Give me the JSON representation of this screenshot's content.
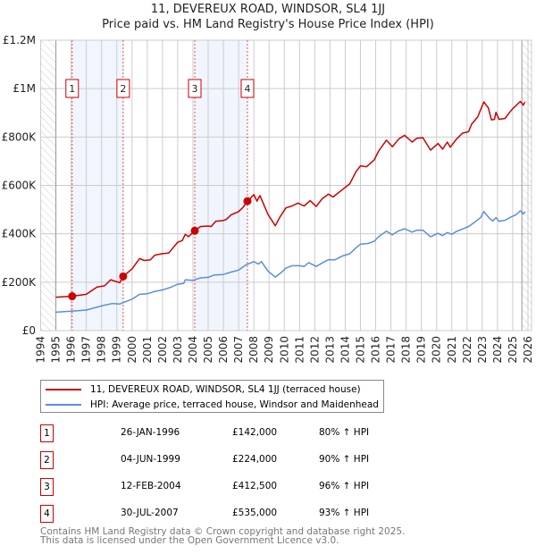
{
  "chart_data": {
    "type": "line",
    "title": "11, DEVEREUX ROAD, WINDSOR, SL4 1JJ",
    "subtitle": "Price paid vs. HM Land Registry's House Price Index (HPI)",
    "xlim": [
      1994,
      2026
    ],
    "ylim": [
      0,
      1200000
    ],
    "x_ticks": [
      "1994",
      "1995",
      "1996",
      "1997",
      "1998",
      "1999",
      "2000",
      "2001",
      "2002",
      "2003",
      "2004",
      "2005",
      "2006",
      "2007",
      "2008",
      "2009",
      "2010",
      "2011",
      "2012",
      "2013",
      "2014",
      "2015",
      "2016",
      "2017",
      "2018",
      "2019",
      "2020",
      "2021",
      "2022",
      "2023",
      "2024",
      "2025",
      "2026"
    ],
    "y_ticks": [
      {
        "v": 0,
        "label": "£0"
      },
      {
        "v": 200000,
        "label": "£200K"
      },
      {
        "v": 400000,
        "label": "£400K"
      },
      {
        "v": 600000,
        "label": "£600K"
      },
      {
        "v": 800000,
        "label": "£800K"
      },
      {
        "v": 1000000,
        "label": "£1M"
      },
      {
        "v": 1200000,
        "label": "£1.2M"
      }
    ],
    "grid": true,
    "data_range": [
      1995.0,
      2025.6
    ],
    "shaded_periods": [
      [
        1996.07,
        1999.42
      ],
      [
        2004.12,
        2007.58
      ]
    ],
    "series": [
      {
        "name": "11, DEVEREUX ROAD, WINDSOR, SL4 1JJ (terraced house)",
        "color": "#cc0000",
        "points": [
          [
            1995.0,
            138000
          ],
          [
            1996.07,
            142000
          ],
          [
            1997,
            150000
          ],
          [
            1997.7,
            180000
          ],
          [
            1998.2,
            185000
          ],
          [
            1998.6,
            210000
          ],
          [
            1999.2,
            198000
          ],
          [
            1999.42,
            224000
          ],
          [
            2000,
            255000
          ],
          [
            2000.5,
            298000
          ],
          [
            2000.8,
            290000
          ],
          [
            2001.2,
            292000
          ],
          [
            2001.5,
            312000
          ],
          [
            2002,
            318000
          ],
          [
            2002.4,
            320000
          ],
          [
            2003,
            365000
          ],
          [
            2003.3,
            372000
          ],
          [
            2003.5,
            398000
          ],
          [
            2003.7,
            388000
          ],
          [
            2004.12,
            412500
          ],
          [
            2004.5,
            430000
          ],
          [
            2005,
            432000
          ],
          [
            2005.2,
            430000
          ],
          [
            2005.5,
            452000
          ],
          [
            2006,
            455000
          ],
          [
            2006.2,
            460000
          ],
          [
            2006.5,
            478000
          ],
          [
            2007,
            492000
          ],
          [
            2007.3,
            510000
          ],
          [
            2007.58,
            535000
          ],
          [
            2008,
            562000
          ],
          [
            2008.2,
            535000
          ],
          [
            2008.4,
            558000
          ],
          [
            2008.93,
            480000
          ],
          [
            2009.41,
            433000
          ],
          [
            2009.7,
            468000
          ],
          [
            2010.1,
            507000
          ],
          [
            2010.5,
            515000
          ],
          [
            2010.9,
            527000
          ],
          [
            2011.3,
            515000
          ],
          [
            2011.7,
            537000
          ],
          [
            2012.1,
            513000
          ],
          [
            2012.5,
            546000
          ],
          [
            2012.9,
            564000
          ],
          [
            2013.2,
            552000
          ],
          [
            2013.8,
            582000
          ],
          [
            2014.3,
            607000
          ],
          [
            2014.7,
            656000
          ],
          [
            2015.0,
            681000
          ],
          [
            2015.4,
            677000
          ],
          [
            2015.9,
            705000
          ],
          [
            2016.2,
            742000
          ],
          [
            2016.7,
            787000
          ],
          [
            2017.1,
            760000
          ],
          [
            2017.5,
            791000
          ],
          [
            2017.9,
            807000
          ],
          [
            2018.4,
            779000
          ],
          [
            2018.7,
            795000
          ],
          [
            2019.1,
            797000
          ],
          [
            2019.6,
            746000
          ],
          [
            2020.1,
            773000
          ],
          [
            2020.4,
            750000
          ],
          [
            2020.7,
            779000
          ],
          [
            2020.9,
            758000
          ],
          [
            2021.3,
            791000
          ],
          [
            2021.7,
            816000
          ],
          [
            2022.1,
            822000
          ],
          [
            2022.3,
            853000
          ],
          [
            2022.7,
            883000
          ],
          [
            2023.1,
            945000
          ],
          [
            2023.4,
            920000
          ],
          [
            2023.6,
            871000
          ],
          [
            2023.8,
            873000
          ],
          [
            2023.9,
            902000
          ],
          [
            2024.1,
            873000
          ],
          [
            2024.5,
            877000
          ],
          [
            2024.8,
            902000
          ],
          [
            2025.0,
            917000
          ],
          [
            2025.5,
            947000
          ],
          [
            2025.7,
            932000
          ],
          [
            2025.8,
            945000
          ]
        ]
      },
      {
        "name": "HPI: Average price, terraced house, Windsor and Maidenhead",
        "color": "#5b8fd6",
        "points": [
          [
            1995.0,
            76000
          ],
          [
            1996,
            80000
          ],
          [
            1997,
            85000
          ],
          [
            1998,
            102000
          ],
          [
            1998.7,
            112000
          ],
          [
            1999.2,
            110000
          ],
          [
            2000,
            130000
          ],
          [
            2000.5,
            150000
          ],
          [
            2001,
            152000
          ],
          [
            2001.5,
            162000
          ],
          [
            2002,
            168000
          ],
          [
            2002.5,
            178000
          ],
          [
            2003,
            192000
          ],
          [
            2003.4,
            195000
          ],
          [
            2003.5,
            210000
          ],
          [
            2004,
            208000
          ],
          [
            2004.5,
            218000
          ],
          [
            2005,
            220000
          ],
          [
            2005.4,
            230000
          ],
          [
            2006,
            232000
          ],
          [
            2006.5,
            242000
          ],
          [
            2007,
            250000
          ],
          [
            2007.5,
            272000
          ],
          [
            2008,
            285000
          ],
          [
            2008.3,
            275000
          ],
          [
            2008.5,
            285000
          ],
          [
            2008.93,
            246000
          ],
          [
            2009.41,
            221000
          ],
          [
            2009.8,
            240000
          ],
          [
            2010.1,
            258000
          ],
          [
            2010.5,
            268000
          ],
          [
            2011,
            268000
          ],
          [
            2011.3,
            265000
          ],
          [
            2011.6,
            281000
          ],
          [
            2012.1,
            265000
          ],
          [
            2012.5,
            280000
          ],
          [
            2012.9,
            293000
          ],
          [
            2013.3,
            292000
          ],
          [
            2013.8,
            308000
          ],
          [
            2014.3,
            318000
          ],
          [
            2014.7,
            342000
          ],
          [
            2015.0,
            357000
          ],
          [
            2015.5,
            360000
          ],
          [
            2015.9,
            369000
          ],
          [
            2016.2,
            388000
          ],
          [
            2016.7,
            411000
          ],
          [
            2017.1,
            396000
          ],
          [
            2017.5,
            412000
          ],
          [
            2017.9,
            421000
          ],
          [
            2018.4,
            407000
          ],
          [
            2018.7,
            415000
          ],
          [
            2019.1,
            415000
          ],
          [
            2019.6,
            388000
          ],
          [
            2020.1,
            402000
          ],
          [
            2020.4,
            392000
          ],
          [
            2020.7,
            405000
          ],
          [
            2021.0,
            398000
          ],
          [
            2021.3,
            410000
          ],
          [
            2021.7,
            420000
          ],
          [
            2022.1,
            430000
          ],
          [
            2022.5,
            448000
          ],
          [
            2022.9,
            468000
          ],
          [
            2023.1,
            492000
          ],
          [
            2023.5,
            462000
          ],
          [
            2023.7,
            453000
          ],
          [
            2023.9,
            467000
          ],
          [
            2024.1,
            452000
          ],
          [
            2024.5,
            456000
          ],
          [
            2024.9,
            470000
          ],
          [
            2025.2,
            478000
          ],
          [
            2025.5,
            495000
          ],
          [
            2025.7,
            482000
          ],
          [
            2025.8,
            492000
          ]
        ]
      }
    ],
    "sales": [
      {
        "label": "1",
        "x": 1996.07,
        "price": 142000,
        "date": "26-JAN-1996",
        "price_text": "£142,000",
        "hpi": "80% ↑ HPI"
      },
      {
        "label": "2",
        "x": 1999.42,
        "price": 224000,
        "date": "04-JUN-1999",
        "price_text": "£224,000",
        "hpi": "90% ↑ HPI"
      },
      {
        "label": "3",
        "x": 2004.12,
        "price": 412500,
        "date": "12-FEB-2004",
        "price_text": "£412,500",
        "hpi": "96% ↑ HPI"
      },
      {
        "label": "4",
        "x": 2007.58,
        "price": 535000,
        "date": "30-JUL-2007",
        "price_text": "£535,000",
        "hpi": "93% ↑ HPI"
      }
    ],
    "footer": [
      "Contains HM Land Registry data © Crown copyright and database right 2025.",
      "This data is licensed under the Open Government Licence v3.0."
    ]
  }
}
